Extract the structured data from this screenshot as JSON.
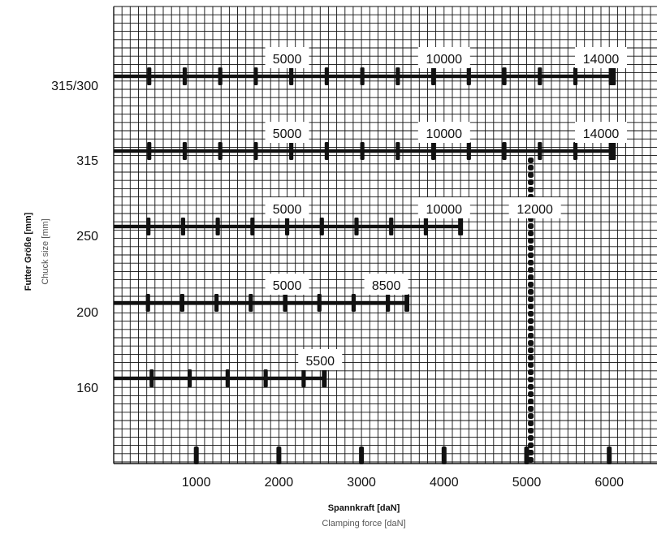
{
  "chart_data": {
    "type": "line",
    "xlabel": "Spannkraft [daN]",
    "xlabel_sub": "Clamping force [daN]",
    "ylabel": "Futter Größe [mm]",
    "ylabel_sub": "Chuck size [mm]",
    "xlim": [
      0,
      6300
    ],
    "x_ticks": [
      1000,
      2000,
      3000,
      4000,
      5000,
      6000
    ],
    "x_tick_labels": [
      "1000",
      "2000",
      "3000",
      "4000",
      "5000",
      "6000"
    ],
    "categories": [
      "315/300",
      "315",
      "250",
      "200",
      "160"
    ],
    "grid": true,
    "series": [
      {
        "name": "315/300",
        "max_force": 6050,
        "mark_step": 430,
        "labels": [
          {
            "text": "5000",
            "at": 2100
          },
          {
            "text": "10000",
            "at": 4000
          },
          {
            "text": "14000",
            "at": 5900
          }
        ]
      },
      {
        "name": "315",
        "max_force": 6050,
        "mark_step": 430,
        "labels": [
          {
            "text": "5000",
            "at": 2100
          },
          {
            "text": "10000",
            "at": 4000
          },
          {
            "text": "14000",
            "at": 5900
          }
        ]
      },
      {
        "name": "250",
        "max_force": 4200,
        "mark_step": 420,
        "labels": [
          {
            "text": "5000",
            "at": 2100
          },
          {
            "text": "10000",
            "at": 4000
          },
          {
            "text": "12000",
            "at": 5100
          }
        ]
      },
      {
        "name": "200",
        "max_force": 3550,
        "mark_step": 415,
        "labels": [
          {
            "text": "5000",
            "at": 2100
          },
          {
            "text": "8500",
            "at": 3300
          }
        ]
      },
      {
        "name": "160",
        "max_force": 2550,
        "mark_step": 460,
        "labels": [
          {
            "text": "5500",
            "at": 2500
          }
        ]
      }
    ],
    "reference_line": {
      "x": 5050,
      "from": "315",
      "to": "bottom"
    }
  }
}
